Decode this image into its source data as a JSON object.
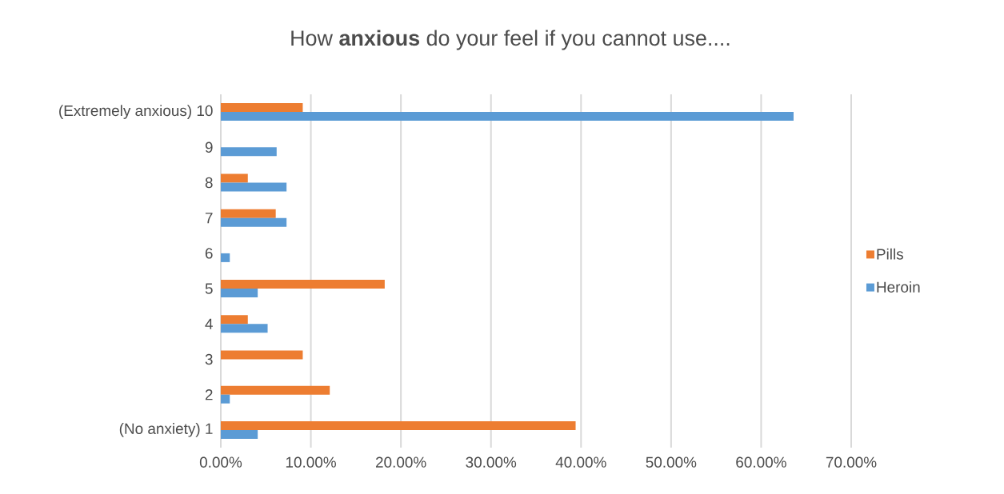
{
  "chart_data": {
    "type": "bar",
    "orientation": "horizontal",
    "title": "How **anxious** do your feel if you cannot use....",
    "categories": [
      "(Extremely  anxious)  10",
      "9",
      "8",
      "7",
      "6",
      "5",
      "4",
      "3",
      "2",
      "(No anxiety) 1"
    ],
    "series": [
      {
        "name": "Pills",
        "color": "#ed7d31",
        "values": [
          9.1,
          0,
          3.0,
          6.1,
          0,
          18.2,
          3.0,
          9.1,
          12.1,
          39.4
        ]
      },
      {
        "name": "Heroin",
        "color": "#5b9bd5",
        "values": [
          63.6,
          6.2,
          7.3,
          7.3,
          1.0,
          4.1,
          5.2,
          0,
          1.0,
          4.1
        ]
      }
    ],
    "xlim": [
      0,
      70
    ],
    "xticks": [
      {
        "value": 0,
        "label": "0.00%"
      },
      {
        "value": 10,
        "label": "10.00%"
      },
      {
        "value": 20,
        "label": "20.00%"
      },
      {
        "value": 30,
        "label": "30.00%"
      },
      {
        "value": 40,
        "label": "40.00%"
      },
      {
        "value": 50,
        "label": "50.00%"
      },
      {
        "value": 60,
        "label": "60.00%"
      },
      {
        "value": 70,
        "label": "70.00%"
      }
    ],
    "grid": "x",
    "legend": "right"
  }
}
